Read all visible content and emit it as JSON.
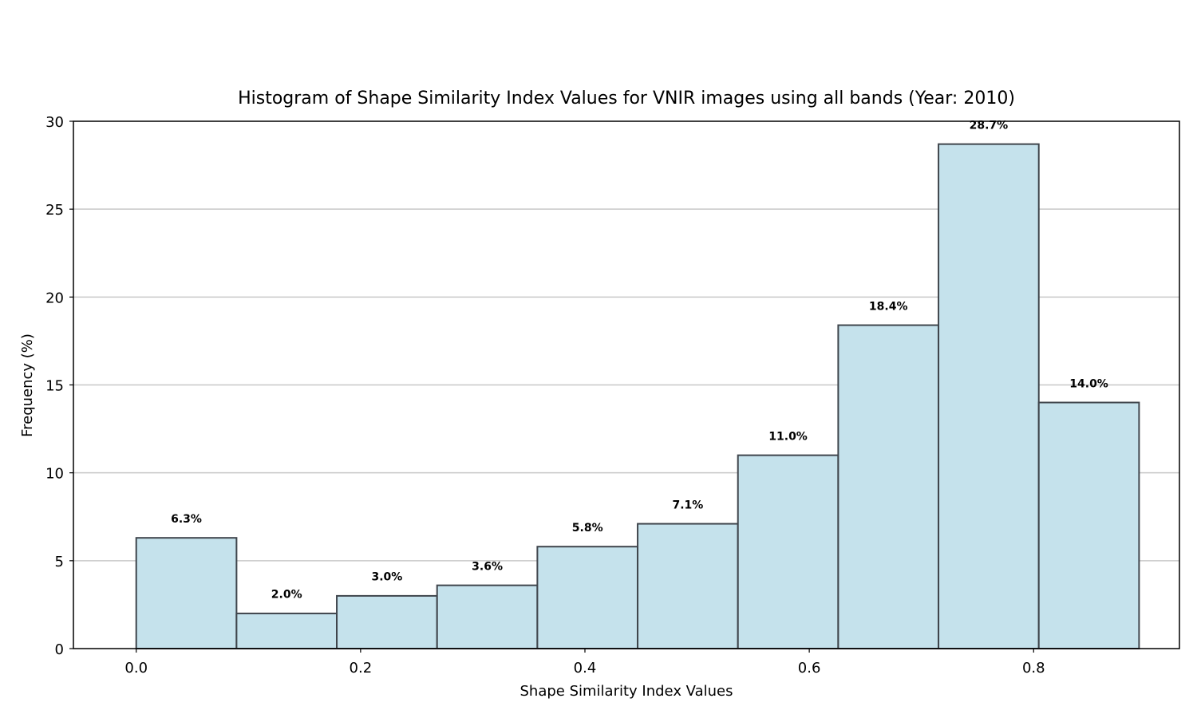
{
  "chart_data": {
    "type": "bar",
    "title": "Histogram of Shape Similarity Index Values for VNIR images using all bands (Year: 2010)",
    "xlabel": "Shape Similarity Index Values",
    "ylabel": "Frequency (%)",
    "xlim": [
      -0.056,
      0.93
    ],
    "ylim": [
      0,
      30
    ],
    "xticks": [
      0.0,
      0.2,
      0.4,
      0.6,
      0.8
    ],
    "xtick_labels": [
      "0.0",
      "0.2",
      "0.4",
      "0.6",
      "0.8"
    ],
    "yticks": [
      0,
      5,
      10,
      15,
      20,
      25,
      30
    ],
    "ytick_labels": [
      "0",
      "5",
      "10",
      "15",
      "20",
      "25",
      "30"
    ],
    "grid": "y",
    "bin_edges": [
      0.0,
      0.0894,
      0.1788,
      0.2682,
      0.3576,
      0.447,
      0.5364,
      0.6258,
      0.7152,
      0.8046,
      0.894
    ],
    "values": [
      6.3,
      2.0,
      3.0,
      3.6,
      5.8,
      7.1,
      11.0,
      18.4,
      28.7,
      14.0
    ],
    "data_labels": [
      "6.3%",
      "2.0%",
      "3.0%",
      "3.6%",
      "5.8%",
      "7.1%",
      "11.0%",
      "18.4%",
      "28.7%",
      "14.0%"
    ],
    "colors": {
      "bar_fill": "#c5e2ec",
      "bar_edge": "#3f454c",
      "grid": "#c8c8c8"
    }
  }
}
